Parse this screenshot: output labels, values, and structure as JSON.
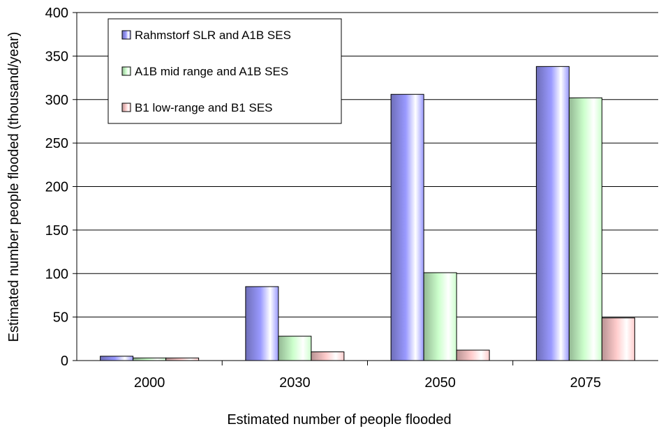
{
  "chart_data": {
    "type": "bar",
    "categories": [
      "2000",
      "2030",
      "2050",
      "2075"
    ],
    "series": [
      {
        "name": "Rahmstorf SLR and A1B SES",
        "values": [
          5,
          85,
          306,
          338
        ],
        "color": "#9999ff"
      },
      {
        "name": "A1B mid range and A1B SES",
        "values": [
          3,
          28,
          101,
          302
        ],
        "color": "#ccffcc"
      },
      {
        "name": "B1 low-range and B1 SES",
        "values": [
          3,
          10,
          12,
          49
        ],
        "color": "#ffcccc"
      }
    ],
    "xlabel": "Estimated number of people flooded",
    "ylabel": "Estimated number people flooded (thousand/year)",
    "ylim": [
      0,
      400
    ],
    "yticks": [
      0,
      50,
      100,
      150,
      200,
      250,
      300,
      350,
      400
    ],
    "grid": true,
    "legend_position": "top-left"
  }
}
